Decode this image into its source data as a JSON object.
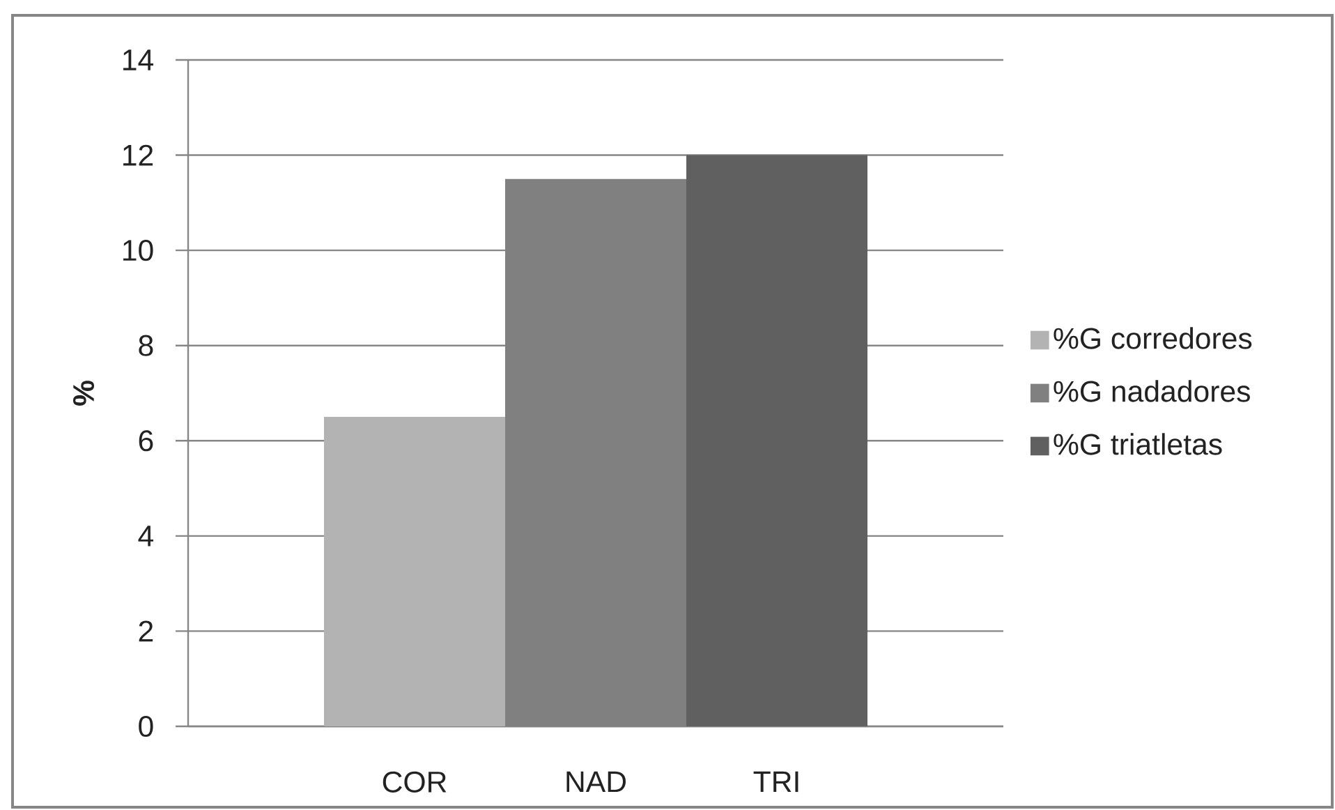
{
  "chart_data": {
    "type": "bar",
    "ylabel": "%",
    "categories": [
      "COR",
      "NAD",
      "TRI"
    ],
    "series": [
      {
        "name": "%G corredores",
        "color": "#b3b3b3",
        "values": [
          6.5,
          null,
          null
        ]
      },
      {
        "name": "%G nadadores",
        "color": "#808080",
        "values": [
          null,
          11.5,
          null
        ]
      },
      {
        "name": "%G triatletas",
        "color": "#606060",
        "values": [
          null,
          null,
          12
        ]
      }
    ],
    "ylim": [
      0,
      14
    ],
    "yticks": [
      0,
      2,
      4,
      6,
      8,
      10,
      12,
      14
    ],
    "grid": "y",
    "legend": "right"
  }
}
